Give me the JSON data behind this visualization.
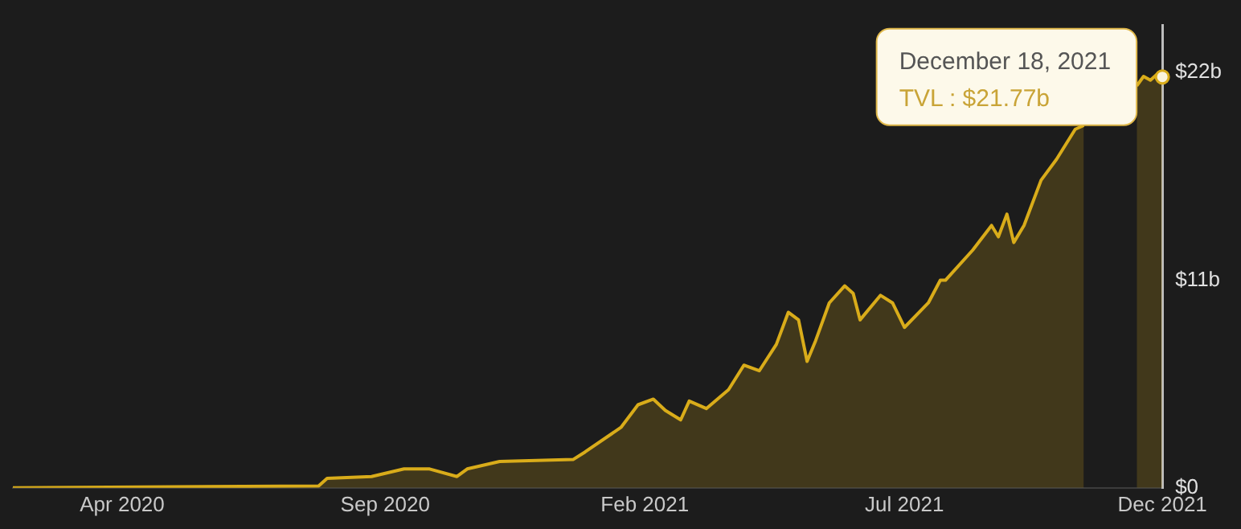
{
  "chart_data": {
    "type": "area",
    "x": [
      "2020-02-14",
      "2020-08-11",
      "2020-08-16",
      "2020-09-11",
      "2020-09-30",
      "2020-10-15",
      "2020-10-31",
      "2020-11-06",
      "2020-11-25",
      "2021-01-07",
      "2021-01-14",
      "2021-02-04",
      "2021-02-14",
      "2021-02-23",
      "2021-03-02",
      "2021-03-11",
      "2021-03-16",
      "2021-03-26",
      "2021-04-08",
      "2021-04-17",
      "2021-04-26",
      "2021-05-06",
      "2021-05-13",
      "2021-05-19",
      "2021-05-24",
      "2021-05-29",
      "2021-06-06",
      "2021-06-15",
      "2021-06-20",
      "2021-06-24",
      "2021-07-06",
      "2021-07-13",
      "2021-07-20",
      "2021-08-03",
      "2021-08-10",
      "2021-08-13",
      "2021-08-29",
      "2021-09-09",
      "2021-09-13",
      "2021-09-18",
      "2021-09-22",
      "2021-09-28",
      "2021-10-08",
      "2021-10-17",
      "2021-10-28",
      "2021-11-02",
      "2021-11-18",
      "2021-12-03",
      "2021-12-07",
      "2021-12-11",
      "2021-12-16",
      "2021-12-18"
    ],
    "series": [
      {
        "color": "#d9ac1a",
        "values": [
          0,
          0.1,
          0.5,
          0.6,
          1.0,
          1.0,
          0.6,
          1.0,
          1.4,
          1.5,
          1.9,
          3.2,
          4.4,
          4.7,
          4.1,
          3.6,
          4.6,
          4.2,
          5.2,
          6.5,
          6.2,
          7.6,
          9.3,
          8.9,
          6.7,
          7.8,
          9.8,
          10.7,
          10.3,
          8.9,
          10.2,
          9.8,
          8.5,
          9.8,
          11.0,
          11.0,
          12.6,
          13.9,
          13.3,
          14.5,
          13.0,
          13.9,
          16.3,
          17.4,
          19.0,
          19.2,
          null,
          21.3,
          21.8,
          21.6,
          22.0,
          21.77
        ]
      }
    ],
    "xlim": [
      "2020-02-14",
      "2021-12-18"
    ],
    "xticks": [
      {
        "value": "2020-04-18",
        "label": "Apr 2020"
      },
      {
        "value": "2020-09-19",
        "label": "Sep 2020"
      },
      {
        "value": "2021-02-18",
        "label": "Feb 2021"
      },
      {
        "value": "2021-07-20",
        "label": "Jul 2021"
      },
      {
        "value": "2021-12-18",
        "label": "Dec 2021"
      }
    ],
    "ylim": [
      0,
      24.5
    ],
    "yticks": [
      {
        "value": 0,
        "label": "$0"
      },
      {
        "value": 11,
        "label": "$11b"
      },
      {
        "value": 22,
        "label": "$22b"
      }
    ],
    "annotations": [
      {
        "text": "December 18, 2021\nTVL : $21.77b",
        "x": "2021-12-18",
        "y": 21.77
      }
    ],
    "grid": false,
    "legend": false,
    "marker": "none",
    "line_style": "solid"
  }
}
